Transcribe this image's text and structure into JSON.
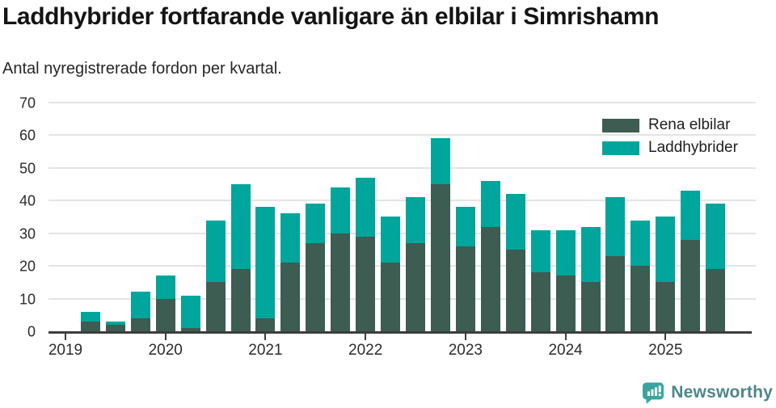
{
  "title": "Laddhybrider fortfarande vanligare än elbilar i Simrishamn",
  "subtitle": "Antal nyregistrerade fordon per kvartal.",
  "footer": {
    "brand": "Newsworthy"
  },
  "colors": {
    "elbilar": "#3d5c52",
    "laddhybrider": "#00a59c",
    "grid": "#e4e4e4",
    "axis": "#3d3d3d",
    "logo_bubble": "#39a49d",
    "logo_text": "#4d868a"
  },
  "chart_data": {
    "type": "bar",
    "stacked": true,
    "title": "Laddhybrider fortfarande vanligare än elbilar i Simrishamn",
    "subtitle": "Antal nyregistrerade fordon per kvartal.",
    "x": [
      "2019 Q1",
      "2019 Q2",
      "2019 Q3",
      "2019 Q4",
      "2020 Q1",
      "2020 Q2",
      "2020 Q3",
      "2020 Q4",
      "2021 Q1",
      "2021 Q2",
      "2021 Q3",
      "2021 Q4",
      "2022 Q1",
      "2022 Q2",
      "2022 Q3",
      "2022 Q4",
      "2023 Q1",
      "2023 Q2",
      "2023 Q3",
      "2023 Q4",
      "2024 Q1",
      "2024 Q2",
      "2024 Q3",
      "2024 Q4",
      "2025 Q1",
      "2025 Q2",
      "2025 Q3"
    ],
    "series": [
      {
        "name": "Rena elbilar",
        "color": "#3d5c52",
        "values": [
          0,
          3,
          2,
          4,
          10,
          1,
          15,
          19,
          4,
          21,
          27,
          30,
          29,
          21,
          27,
          45,
          26,
          32,
          25,
          18,
          17,
          15,
          23,
          20,
          15,
          28,
          19
        ]
      },
      {
        "name": "Laddhybrider",
        "color": "#00a59c",
        "values": [
          0,
          3,
          1,
          8,
          7,
          10,
          19,
          26,
          34,
          15,
          12,
          14,
          18,
          14,
          14,
          14,
          12,
          14,
          17,
          13,
          14,
          17,
          18,
          14,
          20,
          15,
          20
        ]
      }
    ],
    "totals": [
      0,
      6,
      3,
      12,
      17,
      11,
      34,
      45,
      38,
      36,
      39,
      44,
      47,
      35,
      41,
      59,
      38,
      46,
      42,
      31,
      31,
      32,
      41,
      34,
      35,
      43,
      39
    ],
    "xticks": [
      "2019",
      "2020",
      "2021",
      "2022",
      "2023",
      "2024",
      "2025"
    ],
    "yticks": [
      0,
      10,
      20,
      30,
      40,
      50,
      60,
      70
    ],
    "ylim": [
      0,
      70
    ],
    "grid": true,
    "legend_position": "top-right"
  }
}
